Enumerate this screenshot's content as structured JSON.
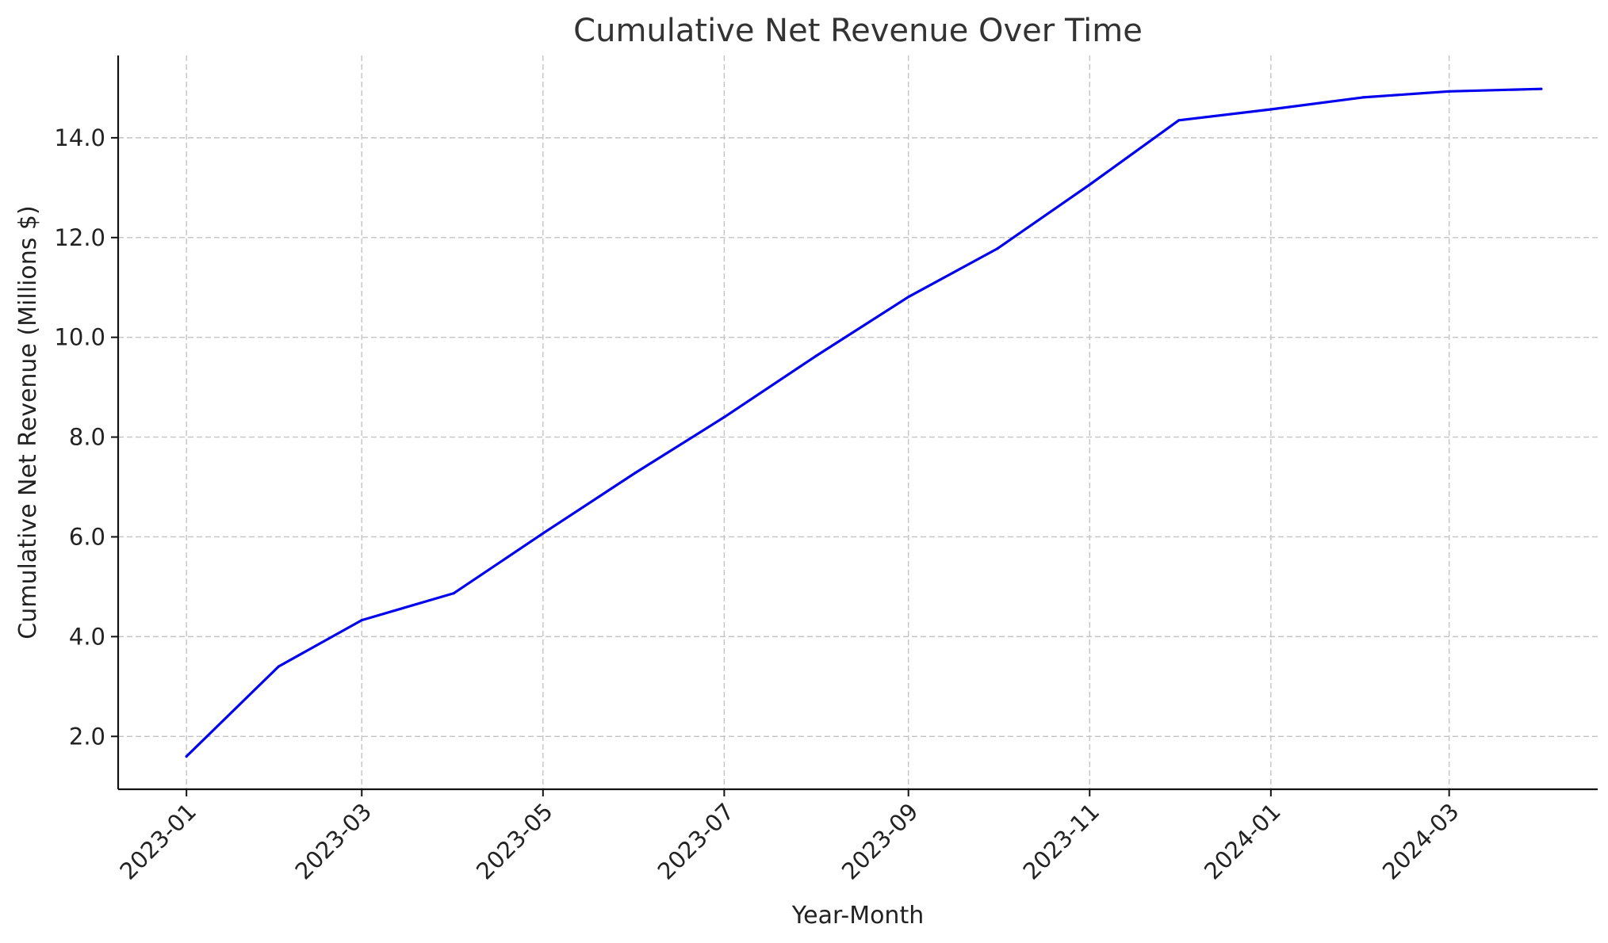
{
  "chart_data": {
    "type": "line",
    "title": "Cumulative Net Revenue Over Time",
    "xlabel": "Year-Month",
    "ylabel": "Cumulative Net Revenue (Millions $)",
    "x_tick_labels": [
      "2023-01",
      "2023-03",
      "2023-05",
      "2023-07",
      "2023-09",
      "2023-11",
      "2024-01",
      "2024-03"
    ],
    "y_tick_labels": [
      "2.0",
      "4.0",
      "6.0",
      "8.0",
      "10.0",
      "12.0",
      "14.0"
    ],
    "ylim": [
      0.94,
      15.65
    ],
    "xlim": [
      "2022-12-09",
      "2024-04-20"
    ],
    "grid": true,
    "line_color": "#0000ee",
    "series": [
      {
        "x": [
          "2023-01",
          "2023-02",
          "2023-03",
          "2023-04",
          "2023-05",
          "2023-06",
          "2023-07",
          "2023-08",
          "2023-09",
          "2023-10",
          "2023-11",
          "2023-12",
          "2024-01",
          "2024-02",
          "2024-03",
          "2024-04"
        ],
        "values": [
          1.6,
          3.4,
          4.33,
          4.87,
          6.07,
          7.28,
          8.4,
          9.63,
          10.81,
          11.78,
          13.06,
          14.35,
          14.57,
          14.81,
          14.93,
          14.98
        ]
      }
    ]
  }
}
